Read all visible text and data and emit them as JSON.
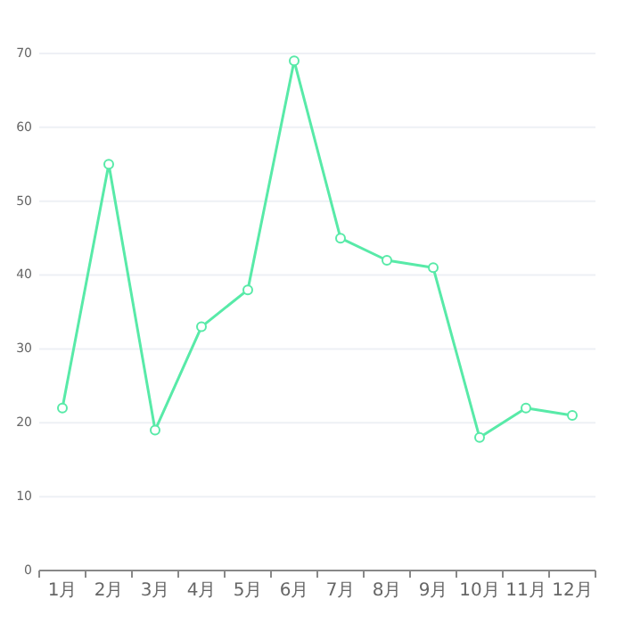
{
  "chart_data": {
    "type": "line",
    "categories": [
      "1月",
      "2月",
      "3月",
      "4月",
      "5月",
      "6月",
      "7月",
      "8月",
      "9月",
      "10月",
      "11月",
      "12月"
    ],
    "series": [
      {
        "color": "#58eaa8",
        "values": [
          22,
          55,
          19,
          33,
          38,
          69,
          45,
          42,
          41,
          18,
          22,
          21
        ]
      }
    ],
    "ylim": [
      0,
      70
    ],
    "yticks": [
      0,
      10,
      20,
      30,
      40,
      50,
      60,
      70
    ],
    "grid": "y",
    "marker": "circle",
    "line_style": "solid"
  }
}
